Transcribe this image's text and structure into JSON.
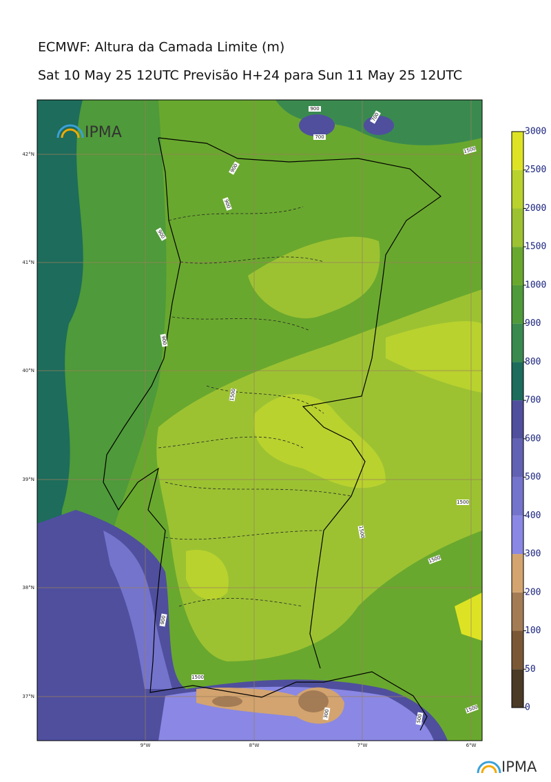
{
  "title": "ECMWF: Altura da Camada Limite (m)",
  "subtitle": "Sat 10 May 25 12UTC Previsão H+24 para Sun 11 May 25 12UTC",
  "logo": "IPMA",
  "lat_labels": [
    "42°N",
    "41°N",
    "40°N",
    "39°N",
    "38°N",
    "37°N"
  ],
  "lon_labels": [
    "9°W",
    "8°W",
    "7°W",
    "6°W"
  ],
  "contour_labels": [
    "900",
    "700",
    "700",
    "1500",
    "900",
    "900",
    "900",
    "900",
    "1500",
    "1500",
    "1500",
    "1500",
    "900",
    "1500",
    "300",
    "1500",
    "500"
  ],
  "colorbar": {
    "ticks": [
      0,
      50,
      100,
      200,
      300,
      400,
      500,
      600,
      700,
      800,
      900,
      1000,
      1500,
      2000,
      2500,
      3000
    ],
    "colors": [
      "#4a3a26",
      "#7a5836",
      "#a37b55",
      "#d3a46f",
      "#8a88e4",
      "#7474cc",
      "#6262b4",
      "#4f4f9e",
      "#1d6c5c",
      "#3a8a50",
      "#4f9a3a",
      "#69a82e",
      "#9cc232",
      "#b9d22e",
      "#dde324"
    ]
  }
}
